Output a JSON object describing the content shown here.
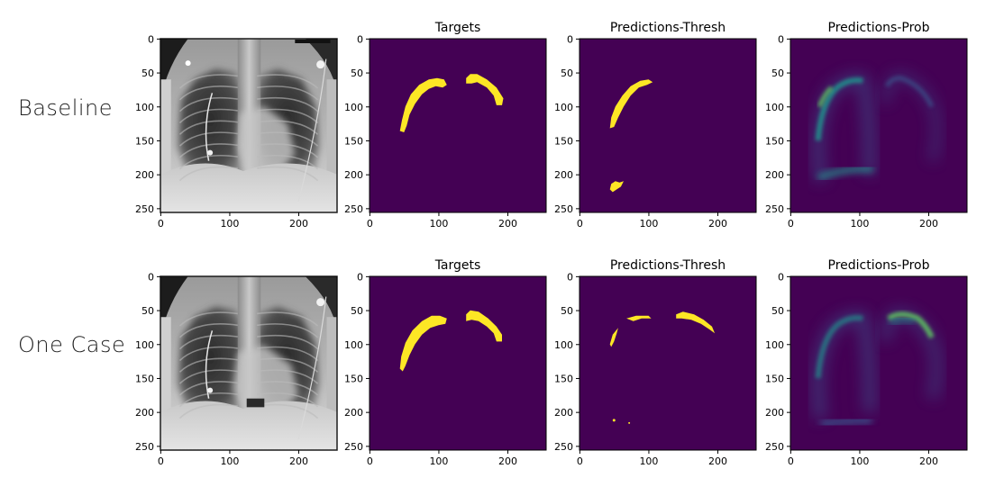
{
  "row_labels": [
    "Baseline",
    "One Case"
  ],
  "rows": [
    {
      "label": "Baseline",
      "panels": [
        {
          "kind": "xray",
          "title": ""
        },
        {
          "kind": "target",
          "title": "Targets"
        },
        {
          "kind": "thresh",
          "title": "Predictions-Thresh"
        },
        {
          "kind": "prob",
          "title": "Predictions-Prob"
        }
      ]
    },
    {
      "label": "One Case",
      "panels": [
        {
          "kind": "xray",
          "title": ""
        },
        {
          "kind": "target",
          "title": "Targets"
        },
        {
          "kind": "thresh",
          "title": "Predictions-Thresh"
        },
        {
          "kind": "prob",
          "title": "Predictions-Prob"
        }
      ]
    }
  ],
  "axes": {
    "x_ticks": [
      "0",
      "100",
      "200"
    ],
    "y_ticks": [
      "0",
      "50",
      "100",
      "150",
      "200",
      "250"
    ],
    "range": [
      0,
      256
    ]
  },
  "colors": {
    "background_dark": "#440154",
    "mask_yellow": "#fde725",
    "prob_mid": "#3b528b",
    "prob_high": "#21918c",
    "prob_peak": "#5ec962"
  }
}
